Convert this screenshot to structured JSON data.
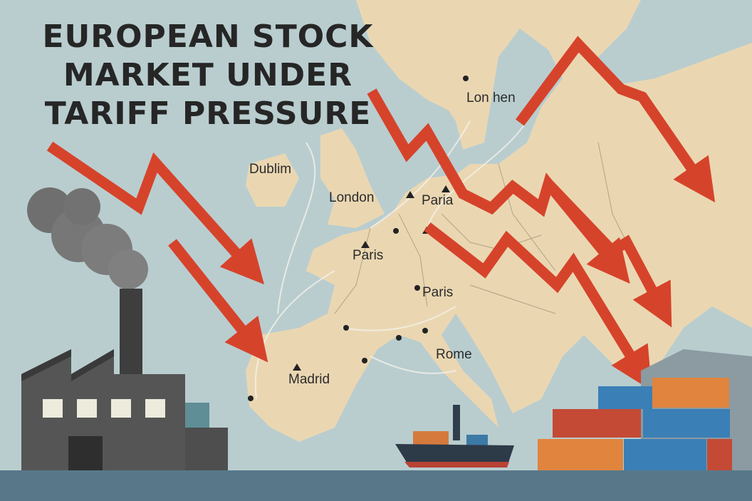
{
  "title": [
    "EUROPEAN STOCK",
    "MARKET UNDER",
    "TARIFF PRESSURE"
  ],
  "cities": [
    "Lon hen",
    "Dublim",
    "London",
    "Paria",
    "Paris",
    "Paris",
    "Rome",
    "Madrid"
  ]
}
